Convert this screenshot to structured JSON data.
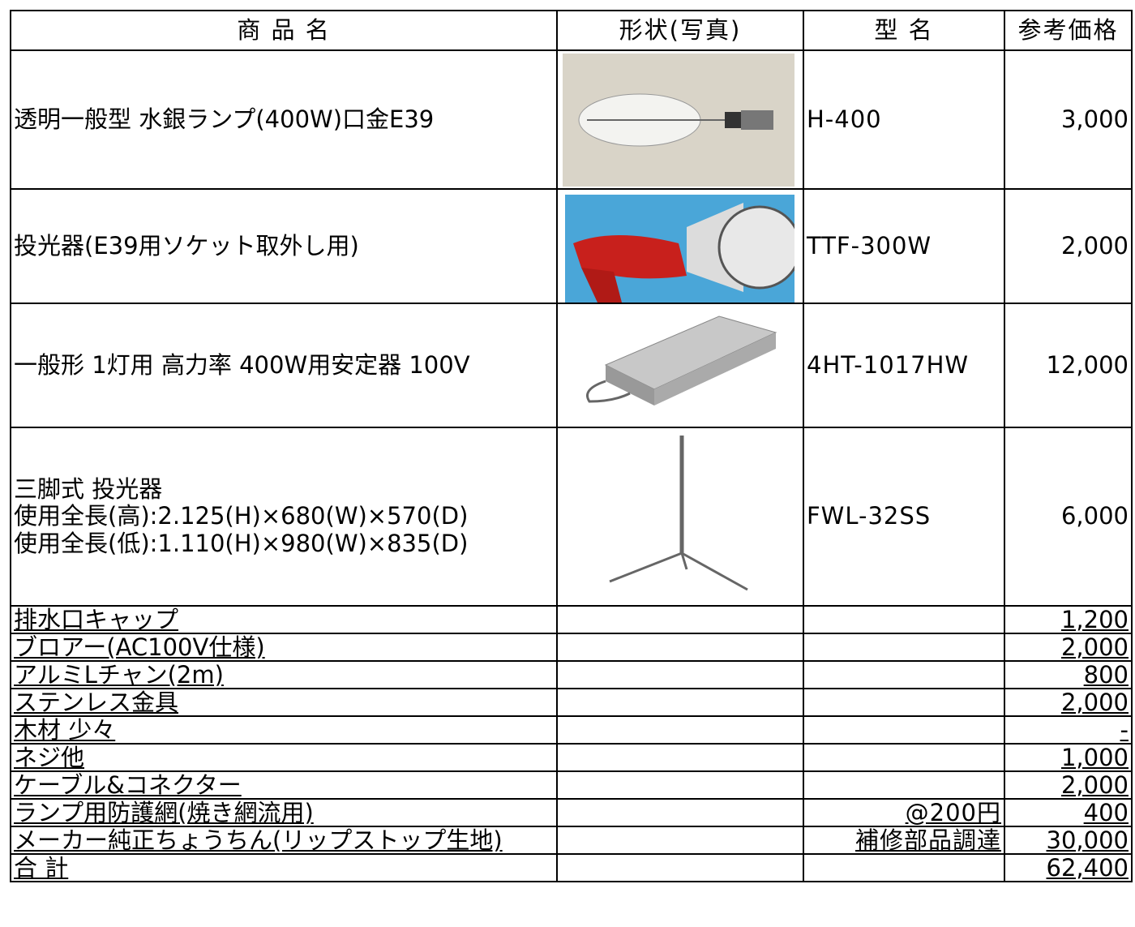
{
  "table": {
    "header": [
      "商 品 名",
      "形状(写真)",
      "型 名",
      "参考価格"
    ],
    "rows": [
      {
        "name": [
          "透明一般型 水銀ランプ(400W)口金E39"
        ],
        "model": "H-400",
        "price": "3,000"
      },
      {
        "name": [
          "投光器(E39用ソケット取外し用)"
        ],
        "model": "TTF-300W",
        "price": "2,000"
      },
      {
        "name": [
          "一般形 1灯用 高力率 400W用安定器 100V"
        ],
        "model": "4HT-1017HW",
        "price": "12,000"
      },
      {
        "name": [
          "三脚式 投光器",
          "使用全長(高):2.125(H)×680(W)×570(D)",
          "使用全長(低):1.110(H)×980(W)×835(D)"
        ],
        "model": "FWL-32SS",
        "price": "6,000"
      },
      {
        "name": [
          "排水口キャップ"
        ],
        "price": "1,200"
      },
      {
        "name": [
          "ブロアー(AC100V仕様)"
        ],
        "price": "2,000"
      },
      {
        "name": [
          "アルミLチャン(2m)"
        ],
        "price": "800"
      },
      {
        "name": [
          "ステンレス金具"
        ],
        "price": "2,000"
      },
      {
        "name": [
          "木材 少々"
        ],
        "price": "-"
      },
      {
        "name": [
          "ネジ他"
        ],
        "price": "1,000"
      },
      {
        "name": [
          "ケーブル&コネクター"
        ],
        "price": "2,000"
      },
      {
        "name": [
          "ランプ用防護網(焼き網流用)"
        ],
        "model": "@200円",
        "price": "400"
      },
      {
        "name": [
          "メーカー純正ちょうちん(リップストップ生地)"
        ],
        "model": "補修部品調達",
        "price": "30,000"
      },
      {
        "name": [
          "合 計"
        ],
        "price": "62,400"
      }
    ]
  }
}
